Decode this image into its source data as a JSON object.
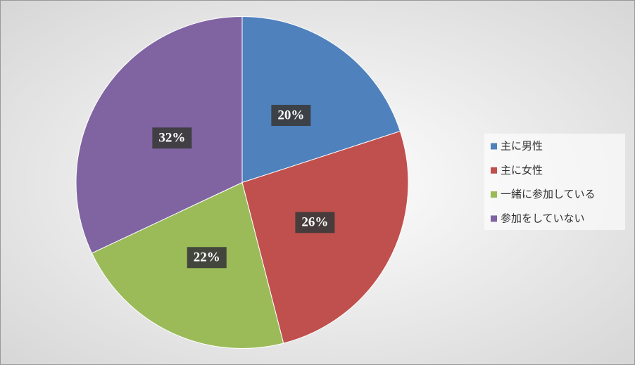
{
  "chart_data": {
    "type": "pie",
    "categories": [
      "主に男性",
      "主に女性",
      "一緒に参加している",
      "参加をしていない"
    ],
    "values": [
      20,
      26,
      22,
      32
    ],
    "value_labels": [
      "20%",
      "26%",
      "22%",
      "32%"
    ],
    "colors": [
      "#4f81bd",
      "#c0504d",
      "#9bbb59",
      "#8064a2"
    ],
    "legend": "right"
  }
}
